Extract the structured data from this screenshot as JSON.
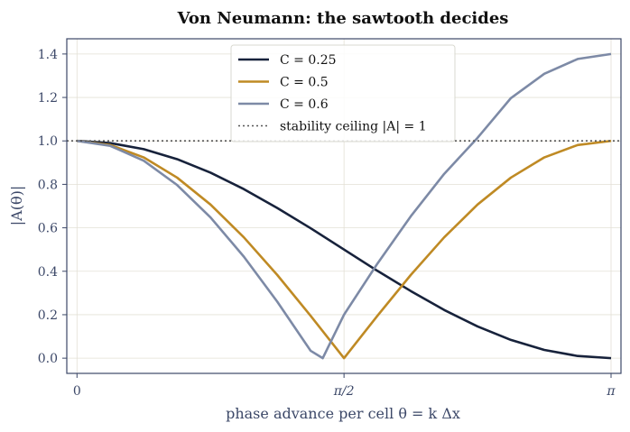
{
  "chart_data": {
    "type": "line",
    "title": "Von Neumann: the sawtooth decides",
    "xlabel": "phase advance per cell  θ = k Δx",
    "ylabel": "|A(θ)|",
    "xlim": [
      -0.06,
      3.2
    ],
    "ylim": [
      -0.07,
      1.47
    ],
    "x_ticks": [
      {
        "value": 0,
        "label": "0"
      },
      {
        "value": 1.5708,
        "label": "π/2"
      },
      {
        "value": 3.1416,
        "label": "π"
      }
    ],
    "y_ticks": [
      {
        "value": 0.0,
        "label": "0.0"
      },
      {
        "value": 0.2,
        "label": "0.2"
      },
      {
        "value": 0.4,
        "label": "0.4"
      },
      {
        "value": 0.6,
        "label": "0.6"
      },
      {
        "value": 0.8,
        "label": "0.8"
      },
      {
        "value": 1.0,
        "label": "1.0"
      },
      {
        "value": 1.2,
        "label": "1.2"
      },
      {
        "value": 1.4,
        "label": "1.4"
      }
    ],
    "grid": true,
    "legend_position": "top-center",
    "series": [
      {
        "name": "C = 0.25",
        "color": "#17223b",
        "x": [
          0,
          0.1963,
          0.3927,
          0.589,
          0.7854,
          0.9817,
          1.1781,
          1.3744,
          1.5708,
          1.7671,
          1.9635,
          2.1598,
          2.3562,
          2.5525,
          2.7489,
          2.9452,
          3.1416
        ],
        "values": [
          1.0,
          0.99,
          0.962,
          0.916,
          0.854,
          0.778,
          0.691,
          0.598,
          0.5,
          0.402,
          0.309,
          0.222,
          0.146,
          0.084,
          0.038,
          0.01,
          0.0
        ]
      },
      {
        "name": "C = 0.5",
        "color": "#bf8a24",
        "x": [
          0,
          0.1963,
          0.3927,
          0.589,
          0.7854,
          0.9817,
          1.1781,
          1.3744,
          1.5708,
          1.7671,
          1.9635,
          2.1598,
          2.3562,
          2.5525,
          2.7489,
          2.9452,
          3.1416
        ],
        "values": [
          1.0,
          0.981,
          0.924,
          0.831,
          0.707,
          0.556,
          0.383,
          0.195,
          0.0,
          0.195,
          0.383,
          0.556,
          0.707,
          0.831,
          0.924,
          0.981,
          1.0
        ]
      },
      {
        "name": "C = 0.6",
        "color": "#7d8aa6",
        "x": [
          0,
          0.1963,
          0.3927,
          0.589,
          0.7854,
          0.9817,
          1.1781,
          1.3744,
          1.4455,
          1.5708,
          1.7671,
          1.9635,
          2.1598,
          2.3562,
          2.5525,
          2.7489,
          2.9452,
          3.1416
        ],
        "values": [
          1.0,
          0.977,
          0.909,
          0.797,
          0.648,
          0.467,
          0.26,
          0.034,
          0.0,
          0.2,
          0.435,
          0.653,
          0.848,
          1.014,
          1.197,
          1.309,
          1.377,
          1.4
        ]
      },
      {
        "name": "stability ceiling |A| = 1",
        "color": "#555555",
        "style": "dotted",
        "x": [
          -0.06,
          3.2
        ],
        "values": [
          1.0,
          1.0
        ]
      }
    ]
  }
}
